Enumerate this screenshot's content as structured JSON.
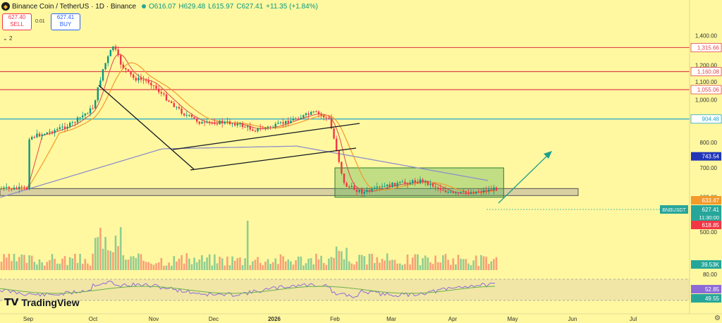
{
  "header": {
    "symbol": "Binance Coin / TetherUS · 1D · Binance",
    "open": "O616.07",
    "high": "H629.48",
    "low": "L615.97",
    "close": "C627.41",
    "change": "+11.35 (+1.84%)"
  },
  "trade": {
    "sell_price": "627.40",
    "sell_label": "SELL",
    "spread": "0.01",
    "buy_price": "627.41",
    "buy_label": "BUY"
  },
  "indicator_toggle": "2",
  "brand": "TradingView",
  "colors": {
    "background": "#fff8a0",
    "up": "#089981",
    "down": "#f23645",
    "resistance": "#e0474c",
    "support_cyan": "#22a6c9",
    "ema_orange": "#f39a2b",
    "ema_red": "#e0474c",
    "ma_purple": "#9090c8",
    "rsi_purple": "#8c6bd8",
    "rsi_green": "#6ab04c"
  },
  "chart_data": {
    "type": "candlestick",
    "xlabel": "",
    "ylabel": "",
    "x_ticks": [
      "Sep",
      "Oct",
      "Nov",
      "Dec",
      "2026",
      "Feb",
      "Mar",
      "Apr",
      "May",
      "Jun",
      "Jul"
    ],
    "y_ticks": [
      "1,400.00",
      "1,200.00",
      "1,100.00",
      "1,000.00",
      "800.00",
      "700.00",
      "600.00",
      "500.00"
    ],
    "y_scale": "log",
    "ylim": [
      480,
      1500
    ],
    "price_series": [
      [
        "Sep",
        820
      ],
      [
        "Sep 10",
        845
      ],
      [
        "Sep 20",
        880
      ],
      [
        "Oct",
        960
      ],
      [
        "Oct 5",
        1180
      ],
      [
        "Oct 10",
        1330
      ],
      [
        "Oct 14",
        1200
      ],
      [
        "Oct 20",
        1120
      ],
      [
        "Oct 28",
        1100
      ],
      [
        "Nov 5",
        1020
      ],
      [
        "Nov 15",
        930
      ],
      [
        "Nov 25",
        880
      ],
      [
        "Dec",
        890
      ],
      [
        "Dec 10",
        885
      ],
      [
        "Dec 20",
        855
      ],
      [
        "2026",
        870
      ],
      [
        "Jan 10",
        905
      ],
      [
        "Jan 20",
        935
      ],
      [
        "Jan 27",
        905
      ],
      [
        "Feb",
        800
      ],
      [
        "Feb 5",
        640
      ],
      [
        "Feb 15",
        615
      ],
      [
        "Mar",
        640
      ],
      [
        "Mar 15",
        655
      ],
      [
        "Apr",
        610
      ],
      [
        "Apr 15",
        620
      ],
      [
        "Apr 22",
        627.41
      ]
    ],
    "horizontal_levels": [
      {
        "value": 1315.66,
        "label": "1,315.66"
      },
      {
        "value": 1160.08,
        "label": "1,160.08"
      },
      {
        "value": 1055.06,
        "label": "1,055.06"
      },
      {
        "value": 904.48,
        "label": "904.48"
      }
    ],
    "price_tags": [
      {
        "value": 743.54,
        "label": "743.54"
      },
      {
        "value": 633.47,
        "label": "633.47"
      },
      {
        "value": 627.41,
        "label": "627.41",
        "symbol": "BNBUSDT",
        "countdown": "11:30:00"
      },
      {
        "value": 618.85,
        "label": "618.85"
      }
    ],
    "volume_label": "39.53K",
    "rsi": {
      "ticks": [
        "80.00"
      ],
      "values": [
        {
          "label": "52.85"
        },
        {
          "label": "49.55"
        }
      ]
    }
  }
}
